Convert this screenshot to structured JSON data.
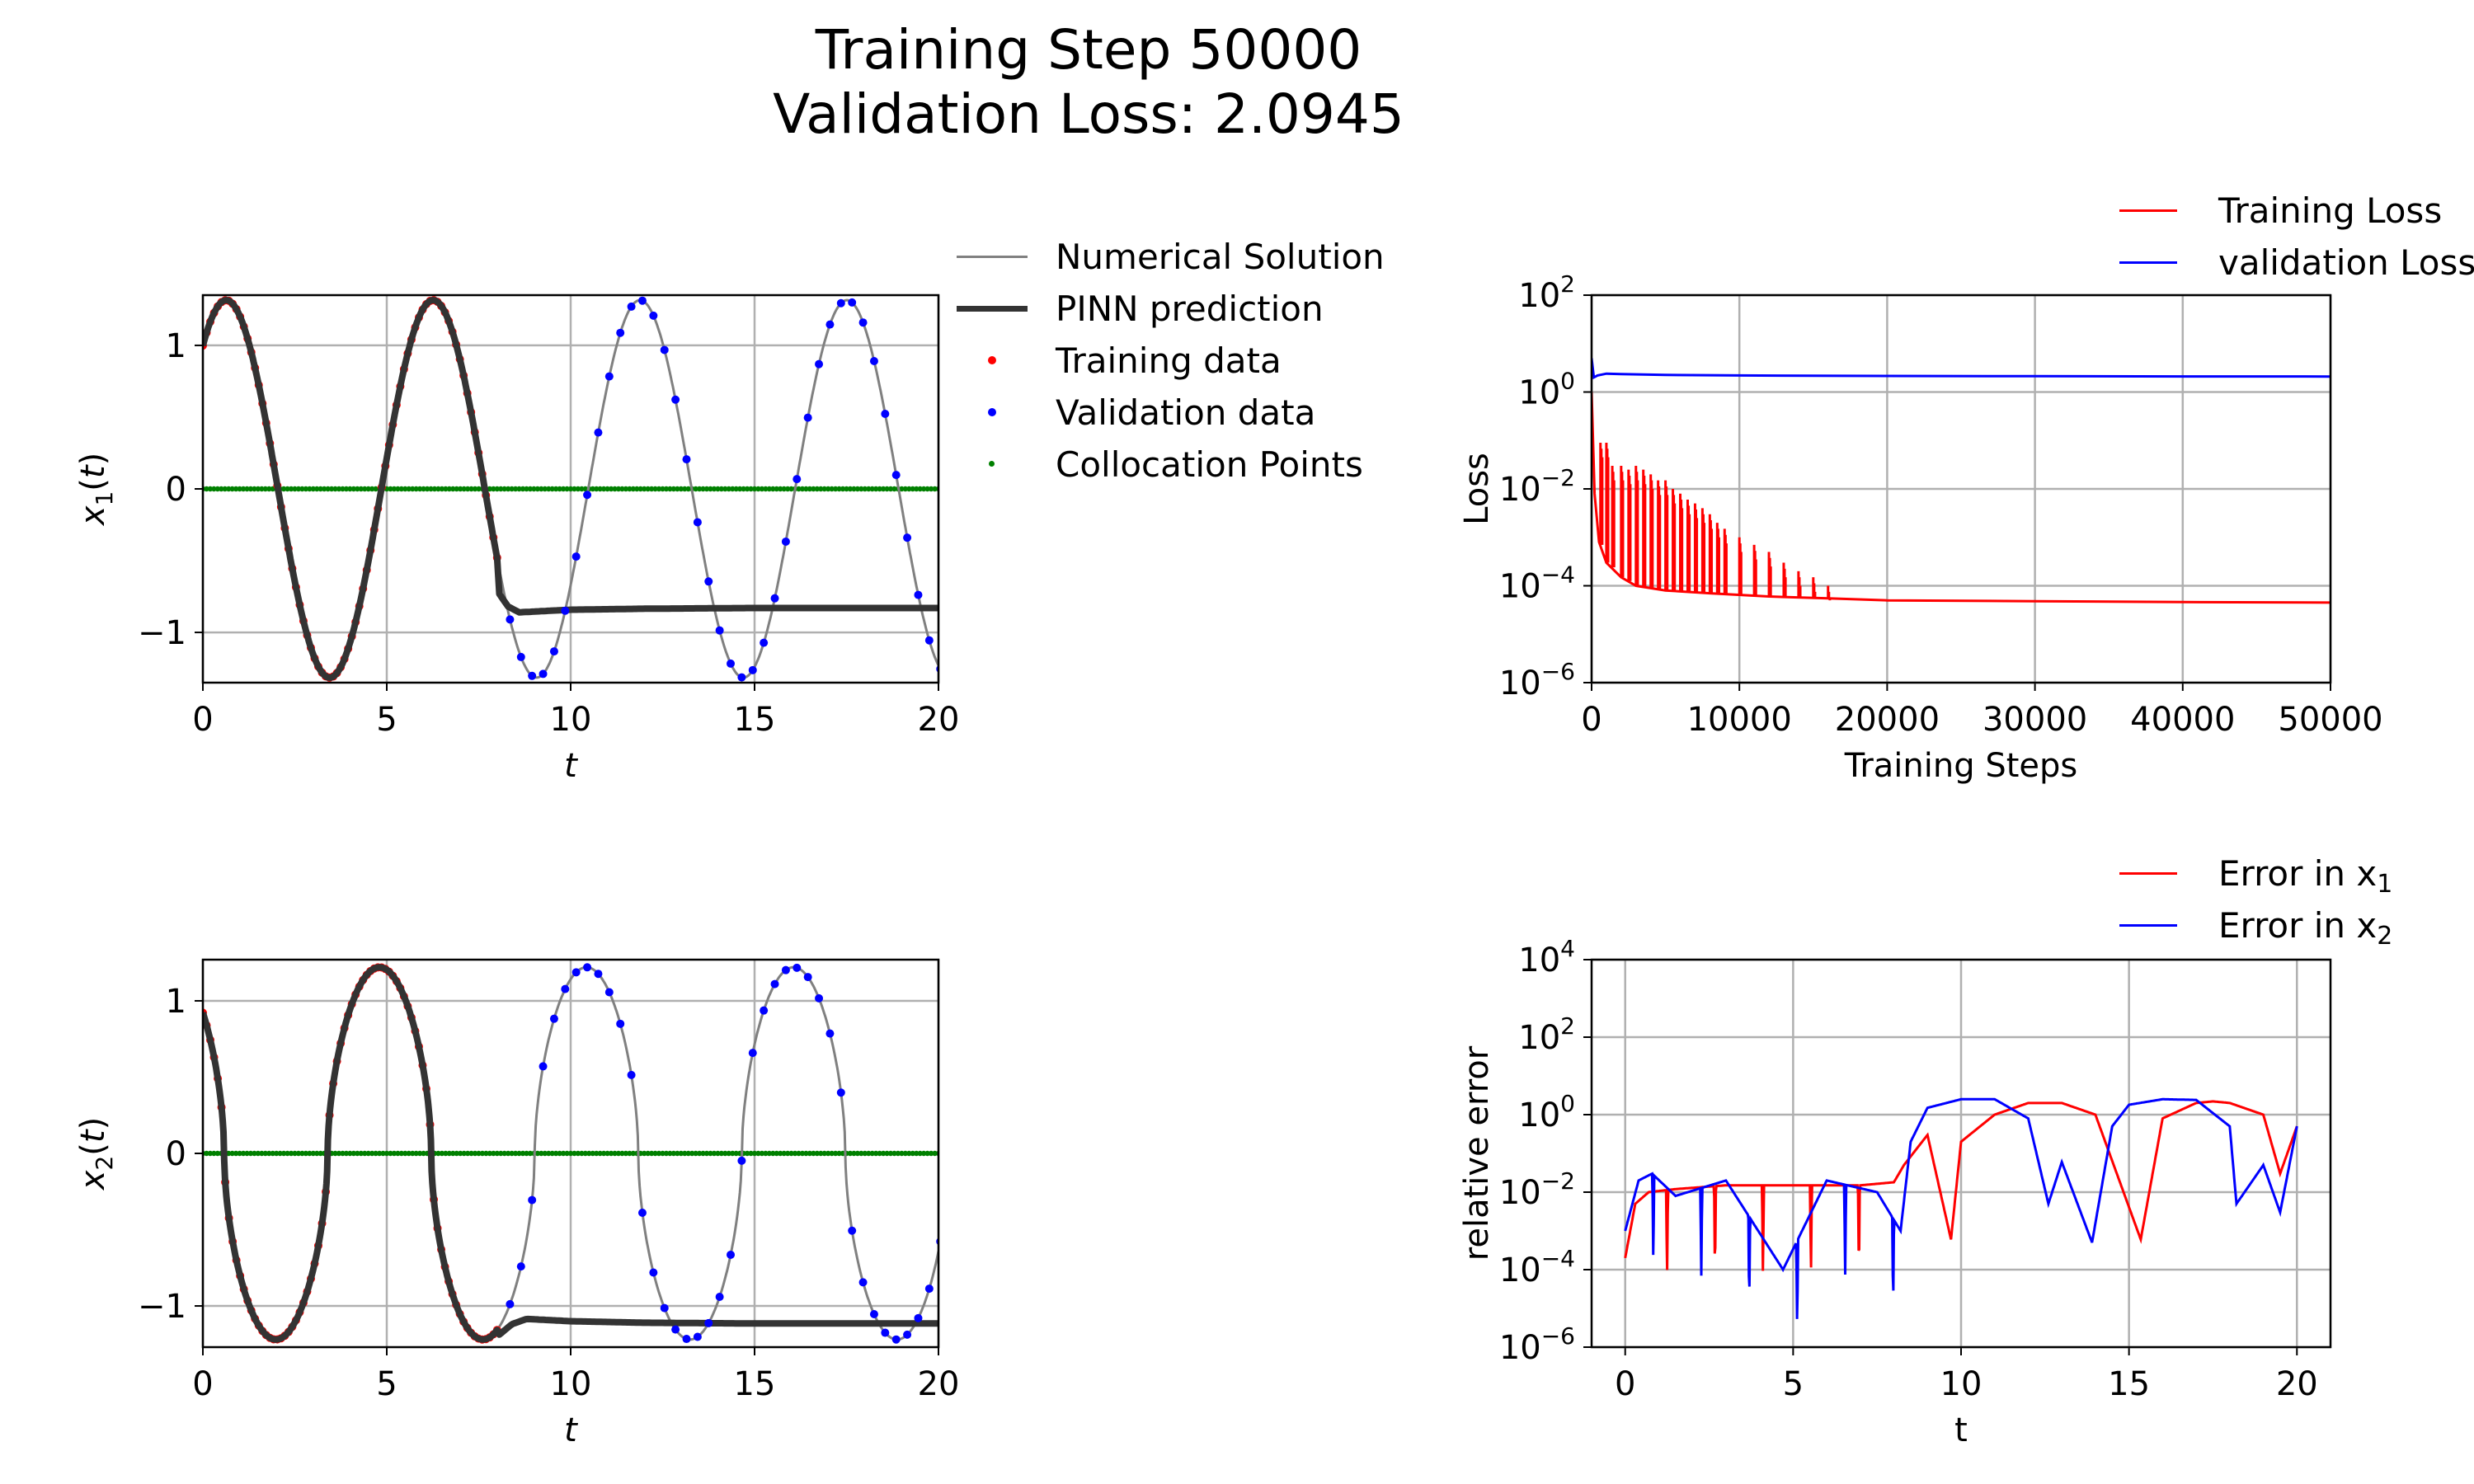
{
  "suptitle": [
    "Training Step 50000",
    "Validation Loss: 2.0945"
  ],
  "colors": {
    "numerical": "#808080",
    "pinn": "#333333",
    "training": "#ff0000",
    "validation": "#0000ff",
    "collocation": "#008000",
    "grid": "#b0b0b0"
  },
  "legend_left": [
    {
      "label": "Numerical Solution",
      "style": "line-thin",
      "color": "#808080"
    },
    {
      "label": "PINN prediction",
      "style": "line-thick",
      "color": "#333333"
    },
    {
      "label": "Training data",
      "style": "dot",
      "color": "#ff0000"
    },
    {
      "label": "Validation data",
      "style": "dot",
      "color": "#0000ff"
    },
    {
      "label": "Collocation Points",
      "style": "dot-small",
      "color": "#008000"
    }
  ],
  "legend_loss": [
    {
      "label": "Training Loss",
      "color": "#ff0000"
    },
    {
      "label": "validation Loss",
      "color": "#0000ff"
    }
  ],
  "legend_err": [
    {
      "label": "Error in x",
      "sub": "1",
      "color": "#ff0000"
    },
    {
      "label": "Error in x",
      "sub": "2",
      "color": "#0000ff"
    }
  ],
  "chart_data": [
    {
      "id": "x1",
      "type": "line",
      "xlabel": "t",
      "ylabel": "x1(t)",
      "xlim": [
        0,
        20
      ],
      "ylim": [
        -1.35,
        1.35
      ],
      "xticks": [
        0,
        5,
        10,
        15,
        20
      ],
      "yticks": [
        -1,
        0,
        1
      ],
      "grid": true,
      "series": [
        {
          "name": "Numerical Solution",
          "kind": "function",
          "formula": "1.315*sin(1.117*t + 0.862)",
          "t_range": [
            0,
            20
          ]
        },
        {
          "name": "PINN prediction",
          "kind": "points",
          "x": [
            0,
            8,
            8.3,
            8.6,
            9,
            9.5,
            10,
            12,
            15,
            20
          ],
          "y": [
            null,
            -0.71,
            -0.82,
            -0.86,
            -0.855,
            -0.848,
            -0.842,
            -0.835,
            -0.83,
            -0.83
          ],
          "note_matches_numerical_until": 8
        },
        {
          "name": "Training data",
          "kind": "samples",
          "t_range": [
            0,
            8
          ],
          "count": 80
        },
        {
          "name": "Validation data",
          "kind": "samples",
          "t_range": [
            8,
            20
          ],
          "count": 40
        },
        {
          "name": "Collocation Points",
          "y": 0,
          "t_range": [
            0,
            20
          ]
        }
      ]
    },
    {
      "id": "x2",
      "type": "line",
      "xlabel": "t",
      "ylabel": "x2(t)",
      "xlim": [
        0,
        20
      ],
      "ylim": [
        -1.27,
        1.27
      ],
      "xticks": [
        0,
        5,
        10,
        15,
        20
      ],
      "yticks": [
        -1,
        0,
        1
      ],
      "grid": true,
      "series": [
        {
          "name": "Numerical Solution",
          "kind": "function",
          "formula": "flattened cosine, amplitude 1.22, period 5.63, peaks t=4.8, 10.4, 16.0",
          "t_range": [
            0,
            20
          ]
        },
        {
          "name": "PINN prediction",
          "kind": "points",
          "x": [
            8,
            8.4,
            8.8,
            9.2,
            10,
            12,
            15,
            20
          ],
          "y": [
            -1.2,
            -1.12,
            -1.085,
            -1.09,
            -1.1,
            -1.11,
            -1.115,
            -1.115
          ],
          "note_matches_numerical_until": 8
        },
        {
          "name": "Training data",
          "kind": "samples",
          "t_range": [
            0,
            8
          ],
          "count": 80
        },
        {
          "name": "Validation data",
          "kind": "samples",
          "t_range": [
            8,
            20
          ],
          "count": 40
        },
        {
          "name": "Collocation Points",
          "y": 0,
          "t_range": [
            0,
            20
          ]
        }
      ]
    },
    {
      "id": "loss",
      "type": "line",
      "xlabel": "Training Steps",
      "ylabel": "Loss",
      "xlim": [
        0,
        50000
      ],
      "ylim_log10": [
        -6,
        2
      ],
      "log_y": true,
      "xticks": [
        0,
        10000,
        20000,
        30000,
        40000,
        50000
      ],
      "yticks_log10": [
        -6,
        -4,
        -2,
        0,
        2
      ],
      "grid": true,
      "series": [
        {
          "name": "Training Loss",
          "x": [
            0,
            200,
            500,
            1000,
            2000,
            3000,
            5000,
            8000,
            12000,
            16000,
            20000,
            30000,
            40000,
            50000
          ],
          "y": [
            1.0,
            0.008,
            0.0008,
            0.0003,
            0.00015,
            0.0001,
            8e-05,
            7e-05,
            6e-05,
            5.5e-05,
            5e-05,
            4.8e-05,
            4.6e-05,
            4.5e-05
          ],
          "spikes": {
            "x": [
              600,
              1000,
              1400,
              2000,
              2500,
              3000,
              3500,
              4000,
              4500,
              5000,
              5500,
              6000,
              6500,
              7000,
              7500,
              8000,
              8500,
              9000,
              10000,
              11000,
              12000,
              13000,
              14000,
              15000,
              16000
            ],
            "y": [
              0.09,
              0.09,
              0.03,
              0.03,
              0.025,
              0.03,
              0.025,
              0.02,
              0.015,
              0.015,
              0.01,
              0.008,
              0.006,
              0.005,
              0.004,
              0.003,
              0.002,
              0.0015,
              0.001,
              0.0007,
              0.0005,
              0.0003,
              0.0002,
              0.00015,
              0.0001
            ]
          }
        },
        {
          "name": "validation Loss",
          "x": [
            0,
            150,
            400,
            1000,
            2000,
            5000,
            10000,
            20000,
            30000,
            40000,
            50000
          ],
          "y": [
            5.0,
            2.0,
            2.2,
            2.4,
            2.35,
            2.25,
            2.2,
            2.15,
            2.12,
            2.1,
            2.09
          ]
        }
      ]
    },
    {
      "id": "error",
      "type": "line",
      "xlabel": "t",
      "ylabel": "relative error",
      "xlim": [
        -1,
        21
      ],
      "ylim_log10": [
        -6,
        4
      ],
      "log_y": true,
      "xticks": [
        0,
        5,
        10,
        15,
        20
      ],
      "yticks_log10": [
        -6,
        -4,
        -2,
        0,
        2,
        4
      ],
      "grid": true,
      "series": [
        {
          "name": "Error in x1",
          "x": [
            0,
            0.3,
            0.7,
            1.5,
            3,
            5,
            7,
            8,
            8.3,
            9,
            9.7,
            10,
            11,
            12,
            13,
            14,
            15.35,
            16,
            17,
            17.5,
            18,
            19,
            19.5,
            20
          ],
          "y": [
            0.0002,
            0.005,
            0.01,
            0.012,
            0.015,
            0.015,
            0.015,
            0.018,
            0.05,
            0.3,
            0.0006,
            0.2,
            1.0,
            2.0,
            2.0,
            1.0,
            0.0006,
            0.8,
            2.0,
            2.2,
            2.0,
            1.0,
            0.03,
            0.5
          ]
        },
        {
          "name": "Error in x2",
          "x": [
            0,
            0.4,
            0.8,
            1.5,
            3,
            4.7,
            6,
            7.5,
            8.2,
            8.5,
            9,
            10,
            11,
            12,
            12.6,
            13,
            13.9,
            14.5,
            15,
            16,
            17,
            18,
            18.2,
            19,
            19.5,
            20
          ],
          "y": [
            0.001,
            0.02,
            0.03,
            0.008,
            0.02,
            0.0001,
            0.02,
            0.01,
            0.001,
            0.2,
            1.5,
            2.5,
            2.5,
            0.8,
            0.005,
            0.06,
            0.0005,
            0.5,
            1.8,
            2.5,
            2.4,
            0.5,
            0.005,
            0.05,
            0.003,
            0.5
          ]
        }
      ]
    }
  ]
}
